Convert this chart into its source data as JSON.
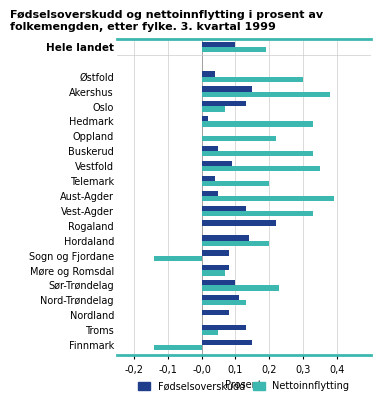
{
  "title": "Fødselsoverskudd og nettoinnflytting i prosent av\nfolkemengden, etter fylke. 3. kvartal 1999",
  "categories": [
    "Hele landet",
    "Østfold",
    "Akershus",
    "Oslo",
    "Hedmark",
    "Oppland",
    "Buskerud",
    "Vestfold",
    "Telemark",
    "Aust-Agder",
    "Vest-Agder",
    "Rogaland",
    "Hordaland",
    "Sogn og Fjordane",
    "Møre og Romsdal",
    "Sør-Trøndelag",
    "Nord-Trøndelag",
    "Nordland",
    "Troms",
    "Finnmark"
  ],
  "fodselsoverskudd": [
    0.1,
    0.04,
    0.15,
    0.13,
    0.02,
    0.0,
    0.05,
    0.09,
    0.04,
    0.05,
    0.13,
    0.22,
    0.14,
    0.08,
    0.08,
    0.1,
    0.11,
    0.08,
    0.13,
    0.15
  ],
  "nettoinnflytting": [
    0.19,
    0.3,
    0.38,
    0.07,
    0.33,
    0.22,
    0.33,
    0.35,
    0.2,
    0.39,
    0.33,
    0.0,
    0.2,
    -0.14,
    0.07,
    0.23,
    0.13,
    0.0,
    0.05,
    -0.14
  ],
  "color_births": "#1f3e8c",
  "color_net": "#3cb8b0",
  "xlabel": "Prosent",
  "legend_births": "Fødselsoverskudd",
  "legend_net": "Nettoinnflytting",
  "xlim": [
    -0.25,
    0.5
  ],
  "xticks": [
    -0.2,
    -0.1,
    0.0,
    0.1,
    0.2,
    0.3,
    0.4
  ],
  "xtick_labels": [
    "-0,2",
    "-0,1",
    "-0,0",
    "0,1",
    "0,2",
    "0,3",
    "0,4"
  ],
  "teal_line_color": "#3cb8b0",
  "background_color": "#ffffff",
  "hele_landet_gap": true
}
